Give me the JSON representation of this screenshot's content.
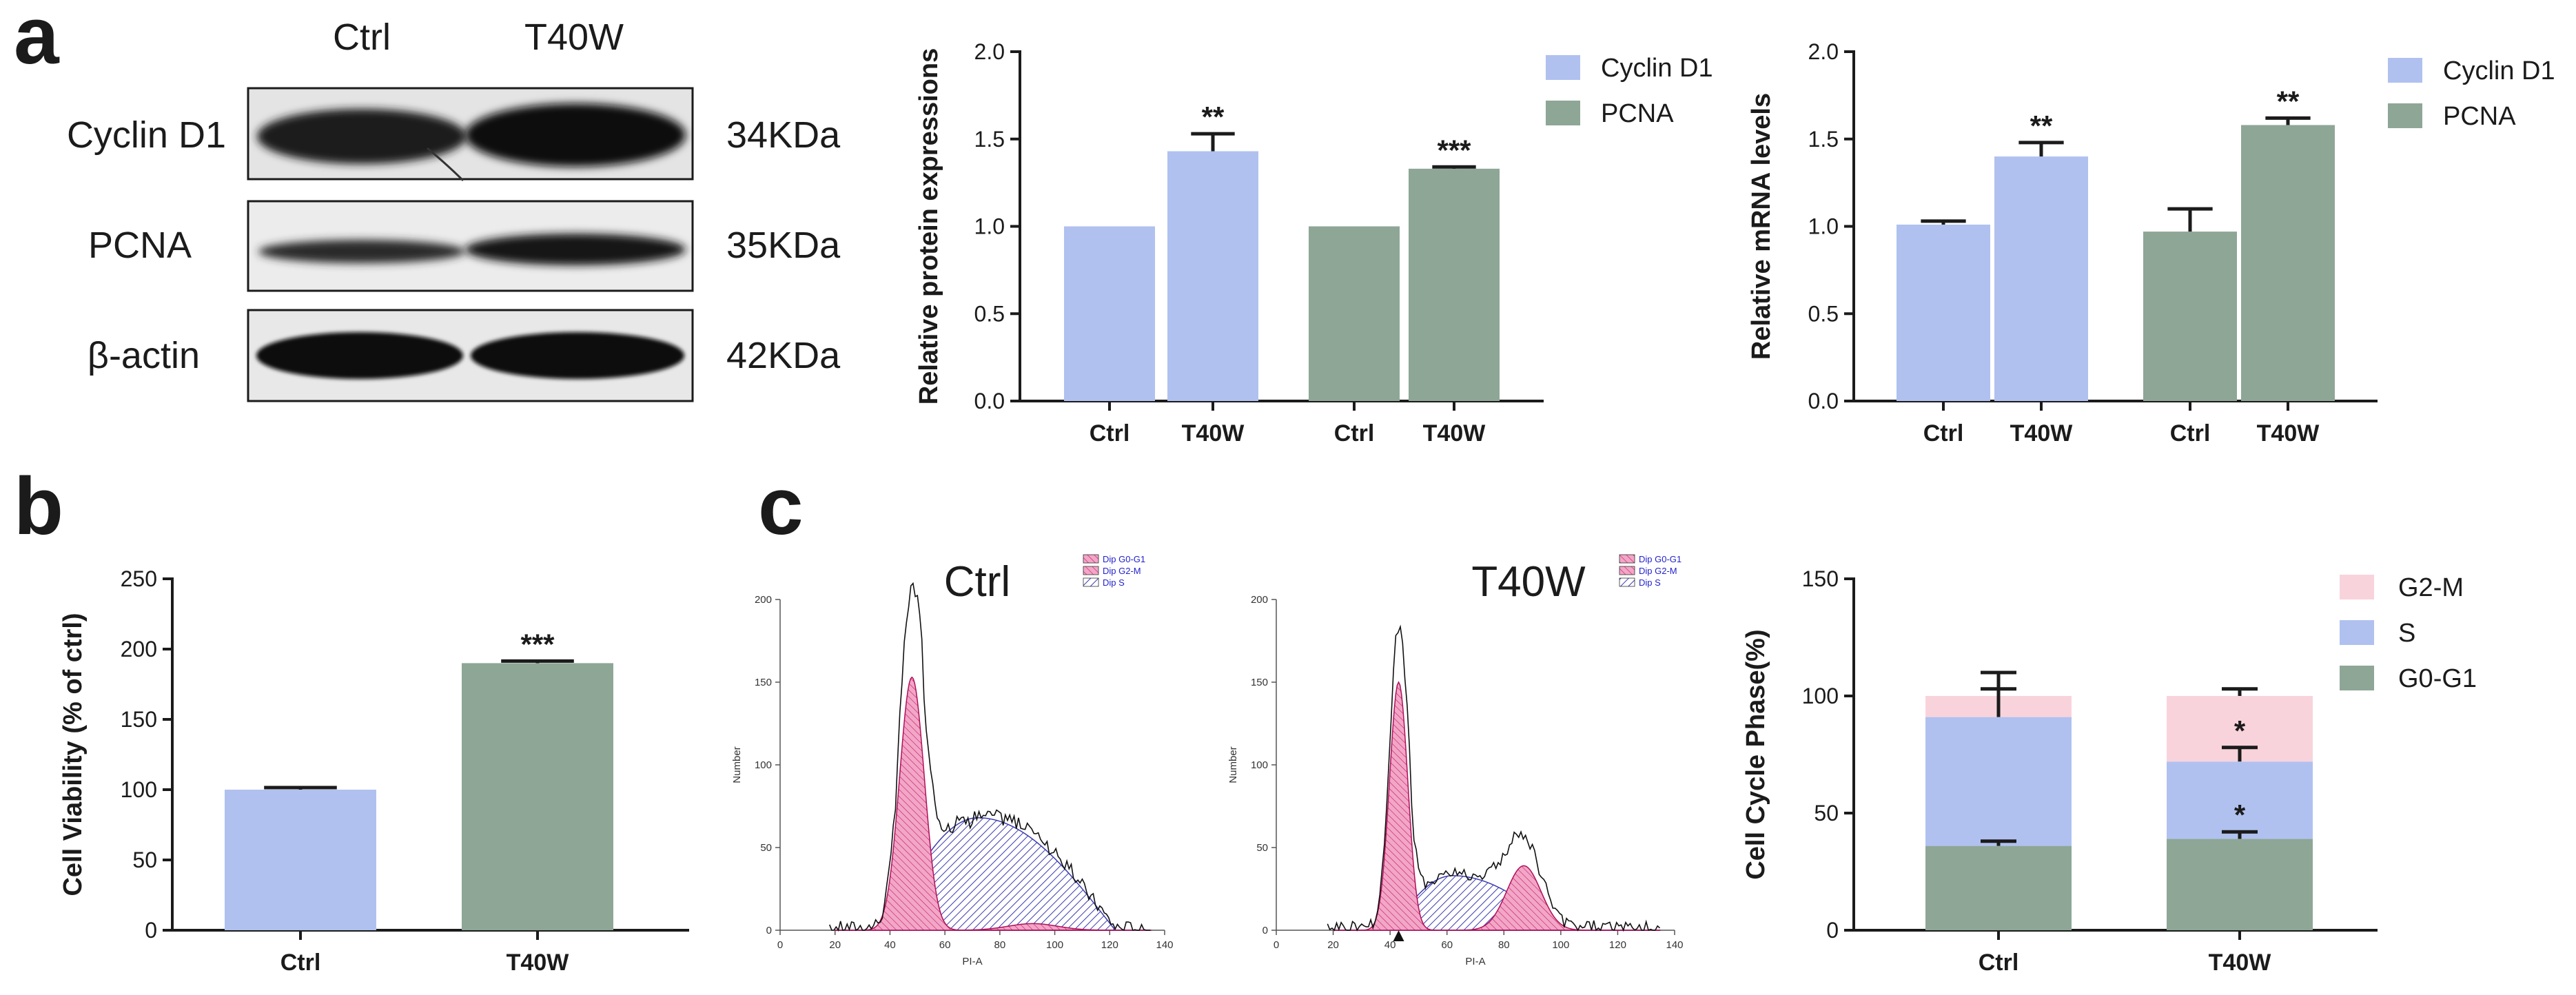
{
  "panels": {
    "a": "a",
    "b": "b",
    "c": "c"
  },
  "colors": {
    "cyclin": "#b0c1f0",
    "pcna": "#8ea696",
    "g2m": "#f8d3dc",
    "s": "#b0c1f0",
    "g0g1": "#8ea696",
    "facs_pink": "#f2a6c8",
    "facs_hatch": "#3b3bb0"
  },
  "western_blot": {
    "columns": [
      "Ctrl",
      "T40W"
    ],
    "rows": [
      {
        "protein": "Cyclin D1",
        "size": "34KDa"
      },
      {
        "protein": "PCNA",
        "size": "35KDa"
      },
      {
        "protein": "β-actin",
        "size": "42KDa"
      }
    ]
  },
  "chart_data": [
    {
      "id": "protein",
      "type": "bar",
      "ylabel": "Relative protein expressions",
      "ylim": [
        0,
        2.0
      ],
      "yticks": [
        "0.0",
        "0.5",
        "1.0",
        "1.5",
        "2.0"
      ],
      "groups": [
        "Cyclin D1",
        "PCNA"
      ],
      "categories": [
        "Ctrl",
        "T40W",
        "Ctrl",
        "T40W"
      ],
      "values": [
        1.0,
        1.43,
        1.0,
        1.33
      ],
      "errors": [
        0,
        0.1,
        0,
        0.01
      ],
      "series_of_bar": [
        0,
        0,
        1,
        1
      ],
      "annotations": [
        "",
        "**",
        "",
        "***"
      ],
      "legend": [
        "Cyclin D1",
        "PCNA"
      ]
    },
    {
      "id": "mrna",
      "type": "bar",
      "ylabel": "Relative mRNA levels",
      "ylim": [
        0,
        2.0
      ],
      "yticks": [
        "0.0",
        "0.5",
        "1.0",
        "1.5",
        "2.0"
      ],
      "groups": [
        "Cyclin D1",
        "PCNA"
      ],
      "categories": [
        "Ctrl",
        "T40W",
        "Ctrl",
        "T40W"
      ],
      "values": [
        1.01,
        1.4,
        0.97,
        1.58
      ],
      "errors": [
        0.02,
        0.08,
        0.13,
        0.04
      ],
      "series_of_bar": [
        0,
        0,
        1,
        1
      ],
      "annotations": [
        "",
        "**",
        "",
        "**"
      ],
      "legend": [
        "Cyclin D1",
        "PCNA"
      ]
    },
    {
      "id": "viability",
      "type": "bar",
      "ylabel": "Cell Viability (% of ctrl)",
      "ylim": [
        0,
        250
      ],
      "yticks": [
        "0",
        "50",
        "100",
        "150",
        "200",
        "250"
      ],
      "categories": [
        "Ctrl",
        "T40W"
      ],
      "values": [
        100,
        190
      ],
      "errors": [
        1.5,
        1.5
      ],
      "series_of_bar": [
        0,
        1
      ],
      "annotations": [
        "",
        "***"
      ]
    },
    {
      "id": "cellcycle",
      "type": "bar",
      "stacked": true,
      "ylabel": "Cell Cycle Phase(%)",
      "ylim": [
        0,
        150
      ],
      "yticks": [
        "0",
        "50",
        "100",
        "150"
      ],
      "categories": [
        "Ctrl",
        "T40W"
      ],
      "series": [
        {
          "name": "G0-G1",
          "values": [
            36,
            39
          ],
          "errors": [
            2,
            3
          ],
          "annotations": [
            "",
            "*"
          ]
        },
        {
          "name": "S",
          "values": [
            55,
            33
          ],
          "errors": [
            12,
            6
          ],
          "annotations": [
            "",
            "*"
          ]
        },
        {
          "name": "G2-M",
          "values": [
            9,
            28
          ],
          "errors": [
            10,
            3
          ],
          "annotations": [
            "",
            ""
          ]
        }
      ],
      "legend_order": [
        "G2-M",
        "S",
        "G0-G1"
      ]
    },
    {
      "id": "facs_ctrl",
      "type": "area",
      "title": "Ctrl",
      "xlabel": "PI-A",
      "ylabel": "Number",
      "xlim": [
        0,
        140
      ],
      "ylim": [
        0,
        200
      ],
      "xticks": [
        "0",
        "20",
        "40",
        "60",
        "80",
        "100",
        "120",
        "140"
      ],
      "yticks": [
        "0",
        "50",
        "100",
        "150",
        "200"
      ],
      "legend": [
        "Dip G0-G1",
        "Dip G2-M",
        "Dip S"
      ],
      "g1": {
        "mean": 48,
        "sd": 4.5,
        "height": 153
      },
      "g2": {
        "mean": 92,
        "sd": 9,
        "height": 4
      },
      "s": {
        "start": 38,
        "end": 122,
        "peak_x": 72,
        "height": 68
      },
      "histogram_peak": 212
    },
    {
      "id": "facs_t40w",
      "type": "area",
      "title": "T40W",
      "xlabel": "PI-A",
      "ylabel": "Number",
      "xlim": [
        0,
        140
      ],
      "ylim": [
        0,
        200
      ],
      "xticks": [
        "0",
        "20",
        "40",
        "60",
        "80",
        "100",
        "120",
        "140"
      ],
      "yticks": [
        "0",
        "50",
        "100",
        "150",
        "200"
      ],
      "legend": [
        "Dip G0-G1",
        "Dip G2-M",
        "Dip S"
      ],
      "g1": {
        "mean": 43,
        "sd": 3.2,
        "height": 150
      },
      "g2": {
        "mean": 87,
        "sd": 6,
        "height": 39
      },
      "s": {
        "start": 40,
        "end": 100,
        "peak_x": 62,
        "height": 33
      },
      "histogram_peak": 188
    }
  ]
}
